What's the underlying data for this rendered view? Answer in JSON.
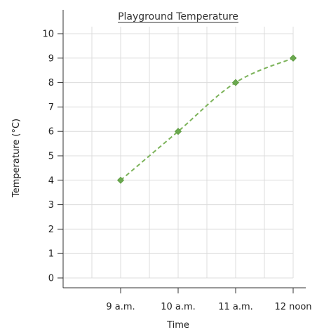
{
  "chart_data": {
    "type": "line",
    "title": "Playground Temperature",
    "xlabel": "Time",
    "ylabel": "Temperature (°C)",
    "categories": [
      "9 a.m.",
      "10 a.m.",
      "11 a.m.",
      "12 noon"
    ],
    "series": [
      {
        "values": [
          4,
          6,
          8,
          9
        ]
      }
    ],
    "ylim": [
      0,
      10
    ],
    "yticks": [
      "0",
      "1",
      "2",
      "3",
      "4",
      "5",
      "6",
      "7",
      "8",
      "9",
      "10"
    ],
    "grid": true,
    "line_style": "dashed",
    "color": "#7cb35a",
    "marker_color": "#6aa84f"
  }
}
